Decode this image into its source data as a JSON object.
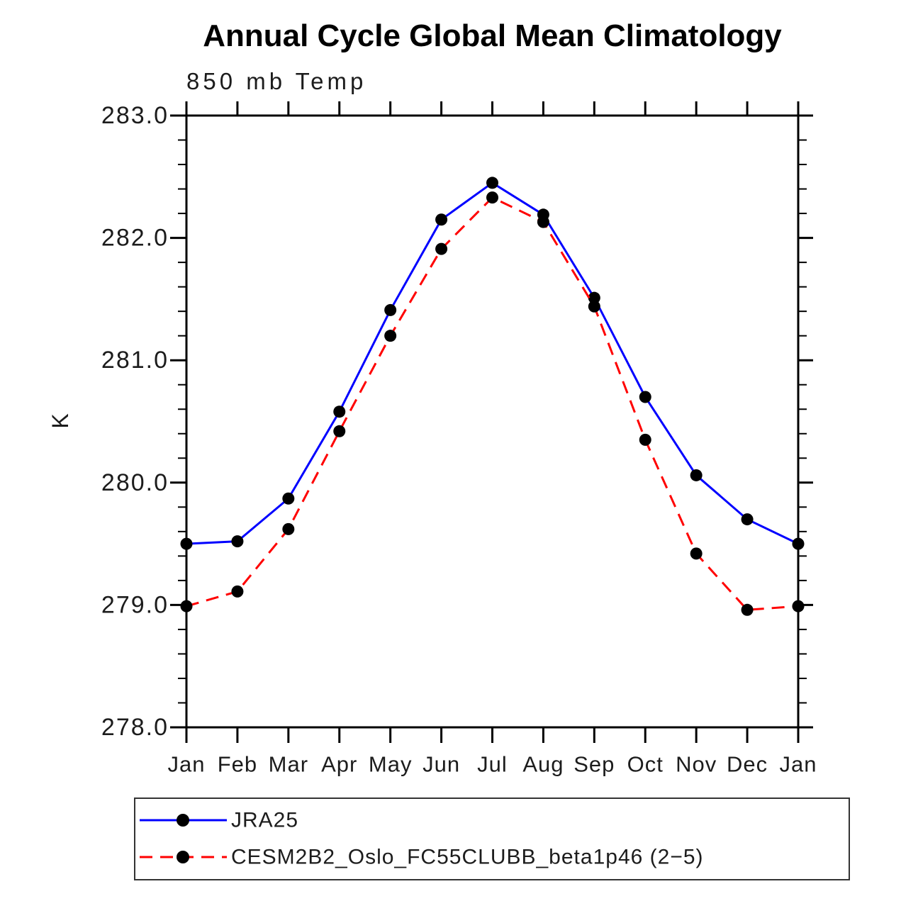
{
  "title": "Annual Cycle Global Mean Climatology",
  "subtitle": "850 mb Temp",
  "chart_data": {
    "type": "line",
    "x_categories": [
      "Jan",
      "Feb",
      "Mar",
      "Apr",
      "May",
      "Jun",
      "Jul",
      "Aug",
      "Sep",
      "Oct",
      "Nov",
      "Dec",
      "Jan"
    ],
    "ylabel": "K",
    "xlabel": "",
    "ylim": [
      278.0,
      283.0
    ],
    "y_ticks": [
      {
        "label": "283.0",
        "value": 283.0
      },
      {
        "label": "282.0",
        "value": 282.0
      },
      {
        "label": "281.0",
        "value": 281.0
      },
      {
        "label": "280.0",
        "value": 280.0
      },
      {
        "label": "279.0",
        "value": 279.0
      },
      {
        "label": "278.0",
        "value": 278.0
      }
    ],
    "y_minor_step": 0.2,
    "grid": false,
    "legend_position": "bottom",
    "series": [
      {
        "name": "JRA25",
        "color": "#0000ff",
        "line_style": "solid",
        "marker": "filled-circle",
        "marker_color": "#000000",
        "values": [
          279.5,
          279.52,
          279.87,
          280.58,
          281.41,
          282.15,
          282.45,
          282.19,
          281.51,
          280.7,
          280.06,
          279.7,
          279.5
        ]
      },
      {
        "name": "CESM2B2_Oslo_FC55CLUBB_beta1p46 (2−5)",
        "color": "#ff0000",
        "line_style": "dashed",
        "marker": "filled-circle",
        "marker_color": "#000000",
        "values": [
          278.99,
          279.11,
          279.62,
          280.42,
          281.2,
          281.91,
          282.33,
          282.13,
          281.44,
          280.35,
          279.42,
          278.96,
          278.99
        ]
      }
    ]
  },
  "colors": {
    "background": "#ffffff",
    "axis": "#000000",
    "text": "#1c1c1c",
    "series1": "#0000ff",
    "series2": "#ff0000",
    "marker": "#000000"
  }
}
